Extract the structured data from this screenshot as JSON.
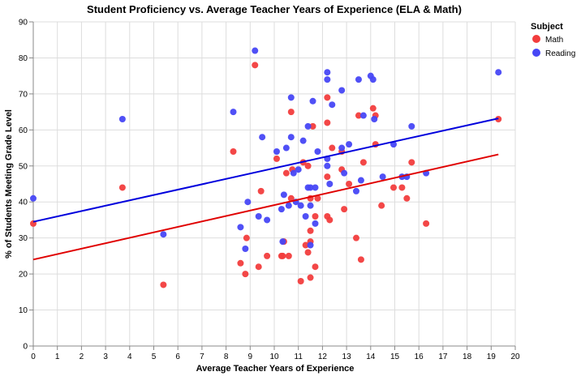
{
  "chart_data": {
    "type": "scatter",
    "title": "Student Proficiency vs. Average Teacher Years of Experience (ELA & Math)",
    "xlabel": "Average Teacher Years of Experience",
    "ylabel": "% of Students Meeting Grade Level",
    "xlim": [
      0,
      20
    ],
    "ylim": [
      0,
      90
    ],
    "xticks": [
      0,
      1,
      2,
      3,
      4,
      5,
      6,
      7,
      8,
      9,
      10,
      11,
      12,
      13,
      14,
      15,
      16,
      17,
      18,
      19,
      20
    ],
    "yticks": [
      0,
      10,
      20,
      30,
      40,
      50,
      60,
      70,
      80,
      90
    ],
    "grid": true,
    "legend": {
      "title": "Subject",
      "position": "top-right",
      "entries": [
        "Math",
        "Reading"
      ]
    },
    "series": [
      {
        "name": "Math",
        "color": "#f23d3d",
        "points": [
          [
            0,
            34
          ],
          [
            3.7,
            44
          ],
          [
            5.4,
            17
          ],
          [
            8.3,
            54
          ],
          [
            8.6,
            23
          ],
          [
            8.8,
            20
          ],
          [
            8.85,
            30
          ],
          [
            9.2,
            78
          ],
          [
            9.35,
            22
          ],
          [
            9.45,
            43
          ],
          [
            9.7,
            25
          ],
          [
            10.1,
            52
          ],
          [
            10.3,
            25
          ],
          [
            10.35,
            25
          ],
          [
            10.4,
            29
          ],
          [
            10.5,
            48
          ],
          [
            10.6,
            25
          ],
          [
            10.7,
            65
          ],
          [
            10.7,
            41
          ],
          [
            10.75,
            49
          ],
          [
            11.1,
            18
          ],
          [
            11.2,
            51
          ],
          [
            11.3,
            28
          ],
          [
            11.4,
            26
          ],
          [
            11.4,
            50
          ],
          [
            11.5,
            41
          ],
          [
            11.5,
            29
          ],
          [
            11.5,
            32
          ],
          [
            11.5,
            19
          ],
          [
            11.6,
            61
          ],
          [
            11.7,
            22
          ],
          [
            11.7,
            36
          ],
          [
            11.8,
            41
          ],
          [
            12.2,
            69
          ],
          [
            12.2,
            62
          ],
          [
            12.2,
            47
          ],
          [
            12.2,
            36
          ],
          [
            12.3,
            35
          ],
          [
            12.4,
            55
          ],
          [
            12.8,
            49
          ],
          [
            12.8,
            54
          ],
          [
            12.9,
            38
          ],
          [
            13.1,
            45
          ],
          [
            13.4,
            30
          ],
          [
            13.5,
            64
          ],
          [
            13.6,
            24
          ],
          [
            13.7,
            51
          ],
          [
            14.1,
            66
          ],
          [
            14.2,
            56
          ],
          [
            14.2,
            64
          ],
          [
            14.45,
            39
          ],
          [
            14.95,
            44
          ],
          [
            15.3,
            44
          ],
          [
            15.5,
            41
          ],
          [
            15.7,
            51
          ],
          [
            16.3,
            34
          ],
          [
            19.3,
            63
          ]
        ],
        "trend": [
          [
            0,
            24
          ],
          [
            19.3,
            53.2
          ]
        ]
      },
      {
        "name": "Reading",
        "color": "#4747f5",
        "points": [
          [
            0,
            41
          ],
          [
            3.7,
            63
          ],
          [
            5.4,
            31
          ],
          [
            8.3,
            65
          ],
          [
            8.6,
            33
          ],
          [
            8.8,
            27
          ],
          [
            8.9,
            40
          ],
          [
            9.2,
            82
          ],
          [
            9.35,
            36
          ],
          [
            9.5,
            58
          ],
          [
            9.7,
            35
          ],
          [
            10.1,
            54
          ],
          [
            10.3,
            38
          ],
          [
            10.35,
            29
          ],
          [
            10.4,
            42
          ],
          [
            10.5,
            55
          ],
          [
            10.6,
            39
          ],
          [
            10.7,
            69
          ],
          [
            10.7,
            58
          ],
          [
            10.8,
            48
          ],
          [
            10.9,
            40
          ],
          [
            11.0,
            49
          ],
          [
            11.1,
            39
          ],
          [
            11.2,
            57
          ],
          [
            11.3,
            36
          ],
          [
            11.4,
            61
          ],
          [
            11.4,
            44
          ],
          [
            11.5,
            44
          ],
          [
            11.5,
            28
          ],
          [
            11.5,
            39
          ],
          [
            11.6,
            68
          ],
          [
            11.7,
            44
          ],
          [
            11.7,
            34
          ],
          [
            11.8,
            54
          ],
          [
            12.2,
            76
          ],
          [
            12.2,
            74
          ],
          [
            12.2,
            52
          ],
          [
            12.2,
            50
          ],
          [
            12.3,
            45
          ],
          [
            12.4,
            67
          ],
          [
            12.8,
            71
          ],
          [
            12.8,
            55
          ],
          [
            12.9,
            48
          ],
          [
            13.1,
            56
          ],
          [
            13.4,
            43
          ],
          [
            13.5,
            74
          ],
          [
            13.6,
            46
          ],
          [
            13.7,
            64
          ],
          [
            14.0,
            75
          ],
          [
            14.1,
            74
          ],
          [
            14.15,
            63
          ],
          [
            14.5,
            47
          ],
          [
            14.95,
            56
          ],
          [
            15.3,
            47
          ],
          [
            15.5,
            47
          ],
          [
            15.7,
            61
          ],
          [
            16.3,
            48
          ],
          [
            19.3,
            76
          ]
        ],
        "trend": [
          [
            0,
            34.5
          ],
          [
            19.3,
            63.2
          ]
        ]
      }
    ]
  }
}
